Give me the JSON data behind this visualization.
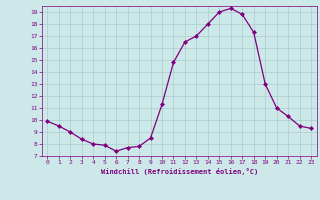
{
  "x": [
    0,
    1,
    2,
    3,
    4,
    5,
    6,
    7,
    8,
    9,
    10,
    11,
    12,
    13,
    14,
    15,
    16,
    17,
    18,
    19,
    20,
    21,
    22,
    23
  ],
  "y": [
    9.9,
    9.5,
    9.0,
    8.4,
    8.0,
    7.9,
    7.4,
    7.7,
    7.8,
    8.5,
    11.3,
    14.8,
    16.5,
    17.0,
    18.0,
    19.0,
    19.3,
    18.8,
    17.3,
    13.0,
    11.0,
    10.3,
    9.5,
    9.3
  ],
  "line_color": "#800080",
  "marker": "D",
  "marker_size": 2,
  "bg_color": "#cce8e8",
  "grid_color": "#aacccc",
  "xlabel": "Windchill (Refroidissement éolien,°C)",
  "xlabel_color": "#800080",
  "tick_color": "#800080",
  "ylim": [
    7,
    19.5
  ],
  "xlim": [
    -0.5,
    23.5
  ],
  "yticks": [
    7,
    8,
    9,
    10,
    11,
    12,
    13,
    14,
    15,
    16,
    17,
    18,
    19
  ],
  "xticks": [
    0,
    1,
    2,
    3,
    4,
    5,
    6,
    7,
    8,
    9,
    10,
    11,
    12,
    13,
    14,
    15,
    16,
    17,
    18,
    19,
    20,
    21,
    22,
    23
  ]
}
